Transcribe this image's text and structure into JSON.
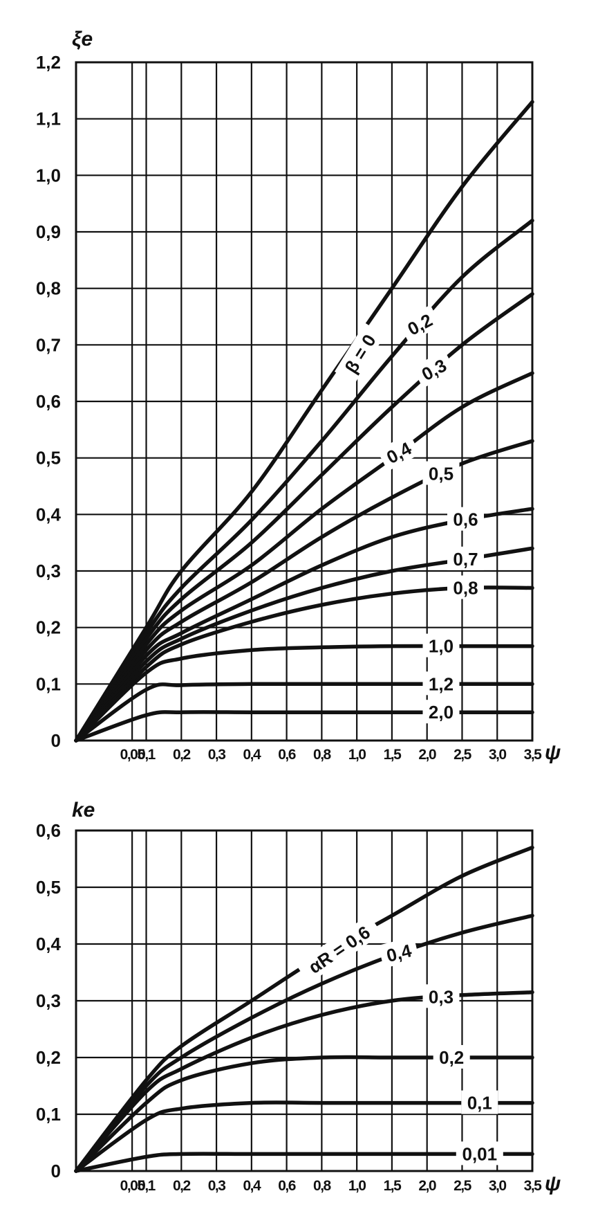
{
  "chart_data": [
    {
      "type": "line",
      "title": "",
      "ylabel": "ξe",
      "xlabel": "ψ",
      "ylim": [
        0,
        1.2
      ],
      "xlim": [
        0,
        3.5
      ],
      "grid": true,
      "y_ticks": [
        "0",
        "0,1",
        "0,2",
        "0,3",
        "0,4",
        "0,5",
        "0,6",
        "0,7",
        "0,8",
        "0,9",
        "1,0",
        "1,1",
        "1,2"
      ],
      "x_ticks": [
        "0,05",
        "0,1",
        "0,2",
        "0,3",
        "0,4",
        "0,6",
        "0,8",
        "1,0",
        "1,5",
        "2,0",
        "2,5",
        "3,0",
        "3,5"
      ],
      "x_tick_values": [
        0.05,
        0.1,
        0.2,
        0.3,
        0.4,
        0.6,
        0.8,
        1.0,
        1.5,
        2.0,
        2.5,
        3.0,
        3.5
      ],
      "series_parameter": "β",
      "series": [
        {
          "label": "β = 0",
          "x": [
            0,
            0.1,
            0.2,
            0.4,
            0.8,
            1.5,
            2.5,
            3.5
          ],
          "y": [
            0,
            0.2,
            0.3,
            0.44,
            0.62,
            0.8,
            0.98,
            1.13
          ]
        },
        {
          "label": "0,2",
          "x": [
            0,
            0.1,
            0.2,
            0.4,
            0.8,
            1.5,
            2.5,
            3.5
          ],
          "y": [
            0,
            0.19,
            0.27,
            0.39,
            0.53,
            0.68,
            0.82,
            0.92
          ]
        },
        {
          "label": "0,3",
          "x": [
            0,
            0.1,
            0.2,
            0.4,
            0.8,
            1.5,
            2.5,
            3.5
          ],
          "y": [
            0,
            0.18,
            0.25,
            0.35,
            0.47,
            0.59,
            0.7,
            0.79
          ]
        },
        {
          "label": "0,4",
          "x": [
            0,
            0.1,
            0.2,
            0.4,
            0.8,
            1.5,
            2.5,
            3.5
          ],
          "y": [
            0,
            0.17,
            0.23,
            0.31,
            0.41,
            0.5,
            0.59,
            0.65
          ]
        },
        {
          "label": "0,5",
          "x": [
            0,
            0.1,
            0.2,
            0.4,
            0.8,
            1.5,
            2.5,
            3.5
          ],
          "y": [
            0,
            0.16,
            0.21,
            0.28,
            0.36,
            0.43,
            0.49,
            0.53
          ]
        },
        {
          "label": "0,6",
          "x": [
            0,
            0.1,
            0.2,
            0.4,
            0.8,
            1.5,
            2.5,
            3.5
          ],
          "y": [
            0,
            0.15,
            0.19,
            0.25,
            0.31,
            0.36,
            0.39,
            0.41
          ]
        },
        {
          "label": "0,7",
          "x": [
            0,
            0.1,
            0.2,
            0.4,
            0.8,
            1.5,
            2.5,
            3.5
          ],
          "y": [
            0,
            0.14,
            0.18,
            0.23,
            0.27,
            0.3,
            0.32,
            0.34
          ]
        },
        {
          "label": "0,8",
          "x": [
            0,
            0.1,
            0.2,
            0.4,
            0.8,
            1.5,
            2.5,
            3.5
          ],
          "y": [
            0,
            0.13,
            0.17,
            0.21,
            0.24,
            0.26,
            0.27,
            0.27
          ]
        },
        {
          "label": "1,0",
          "x": [
            0,
            0.1,
            0.2,
            0.4,
            0.8,
            1.5,
            2.5,
            3.5
          ],
          "y": [
            0,
            0.12,
            0.145,
            0.16,
            0.165,
            0.167,
            0.167,
            0.167
          ]
        },
        {
          "label": "1,2",
          "x": [
            0,
            0.1,
            0.2,
            0.4,
            0.8,
            1.5,
            2.5,
            3.5
          ],
          "y": [
            0,
            0.09,
            0.098,
            0.1,
            0.1,
            0.1,
            0.1,
            0.1
          ]
        },
        {
          "label": "2,0",
          "x": [
            0,
            0.1,
            0.2,
            0.4,
            0.8,
            1.5,
            2.5,
            3.5
          ],
          "y": [
            0,
            0.045,
            0.05,
            0.05,
            0.05,
            0.05,
            0.05,
            0.05
          ]
        }
      ]
    },
    {
      "type": "line",
      "title": "",
      "ylabel": "ke",
      "xlabel": "ψ",
      "ylim": [
        0,
        0.6
      ],
      "xlim": [
        0,
        3.5
      ],
      "grid": true,
      "y_ticks": [
        "0",
        "0,1",
        "0,2",
        "0,3",
        "0,4",
        "0,5",
        "0,6"
      ],
      "x_ticks": [
        "0,05",
        "0,1",
        "0,2",
        "0,3",
        "0,4",
        "0,6",
        "0,8",
        "1,0",
        "1,5",
        "2,0",
        "2,5",
        "3,0",
        "3,5"
      ],
      "x_tick_values": [
        0.05,
        0.1,
        0.2,
        0.3,
        0.4,
        0.6,
        0.8,
        1.0,
        1.5,
        2.0,
        2.5,
        3.0,
        3.5
      ],
      "series_parameter": "αR",
      "series": [
        {
          "label": "αR = 0,6",
          "x": [
            0,
            0.1,
            0.2,
            0.4,
            0.8,
            1.5,
            2.5,
            3.5
          ],
          "y": [
            0,
            0.16,
            0.22,
            0.3,
            0.38,
            0.45,
            0.52,
            0.57
          ]
        },
        {
          "label": "0,4",
          "x": [
            0,
            0.1,
            0.2,
            0.4,
            0.8,
            1.5,
            2.5,
            3.5
          ],
          "y": [
            0,
            0.15,
            0.2,
            0.27,
            0.33,
            0.38,
            0.42,
            0.45
          ]
        },
        {
          "label": "0,3",
          "x": [
            0,
            0.1,
            0.2,
            0.4,
            0.8,
            1.5,
            2.5,
            3.5
          ],
          "y": [
            0,
            0.14,
            0.18,
            0.235,
            0.275,
            0.3,
            0.31,
            0.315
          ]
        },
        {
          "label": "0,2",
          "x": [
            0,
            0.1,
            0.2,
            0.4,
            0.8,
            1.5,
            2.5,
            3.5
          ],
          "y": [
            0,
            0.12,
            0.16,
            0.19,
            0.2,
            0.2,
            0.2,
            0.2
          ]
        },
        {
          "label": "0,1",
          "x": [
            0,
            0.1,
            0.2,
            0.4,
            0.8,
            1.5,
            2.5,
            3.5
          ],
          "y": [
            0,
            0.09,
            0.11,
            0.12,
            0.12,
            0.12,
            0.12,
            0.12
          ]
        },
        {
          "label": "0,01",
          "x": [
            0,
            0.1,
            0.2,
            0.4,
            0.8,
            1.5,
            2.5,
            3.5
          ],
          "y": [
            0,
            0.025,
            0.03,
            0.03,
            0.03,
            0.03,
            0.03,
            0.03
          ]
        }
      ]
    }
  ]
}
